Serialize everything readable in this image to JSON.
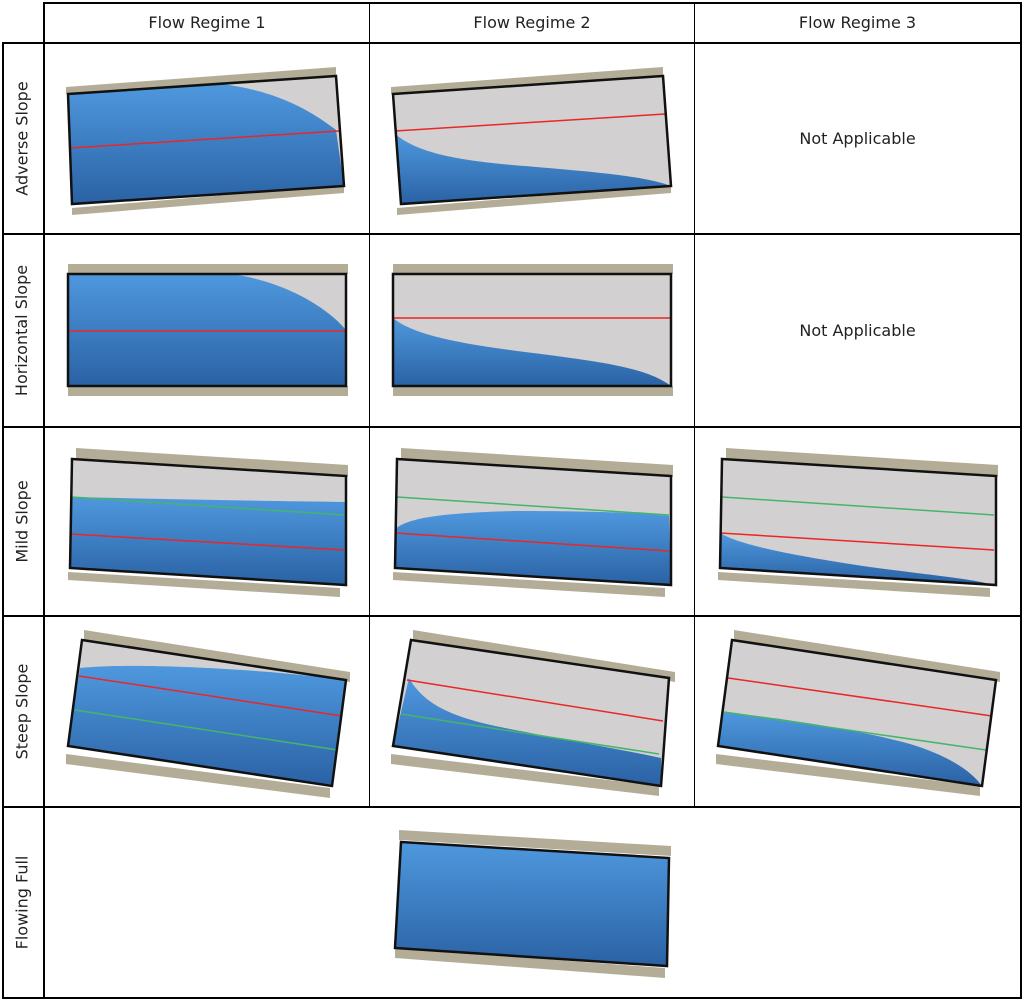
{
  "columns": [
    "Flow Regime 1",
    "Flow Regime 2",
    "Flow Regime 3"
  ],
  "rows": [
    "Adverse Slope",
    "Horizontal Slope",
    "Mild Slope",
    "Steep Slope",
    "Flowing Full"
  ],
  "not_applicable_text": "Not Applicable",
  "cells": [
    {
      "row": "Adverse Slope",
      "column": "Flow Regime 1",
      "content": "diagram",
      "profile": "drawdown from full",
      "lines": [
        "normal-depth-red"
      ]
    },
    {
      "row": "Adverse Slope",
      "column": "Flow Regime 2",
      "content": "diagram",
      "profile": "drawdown to outlet",
      "lines": [
        "critical-depth-red"
      ]
    },
    {
      "row": "Adverse Slope",
      "column": "Flow Regime 3",
      "content": "text"
    },
    {
      "row": "Horizontal Slope",
      "column": "Flow Regime 1",
      "content": "diagram",
      "profile": "drawdown from full",
      "lines": [
        "critical-depth-red"
      ]
    },
    {
      "row": "Horizontal Slope",
      "column": "Flow Regime 2",
      "content": "diagram",
      "profile": "drawdown to outlet",
      "lines": [
        "critical-depth-red"
      ]
    },
    {
      "row": "Horizontal Slope",
      "column": "Flow Regime 3",
      "content": "text"
    },
    {
      "row": "Mild Slope",
      "column": "Flow Regime 1",
      "content": "diagram",
      "profile": "backwater above normal",
      "lines": [
        "normal-depth-green",
        "critical-depth-red"
      ]
    },
    {
      "row": "Mild Slope",
      "column": "Flow Regime 2",
      "content": "diagram",
      "profile": "rising to normal",
      "lines": [
        "normal-depth-green",
        "critical-depth-red"
      ]
    },
    {
      "row": "Mild Slope",
      "column": "Flow Regime 3",
      "content": "diagram",
      "profile": "drawdown to outlet",
      "lines": [
        "normal-depth-green",
        "critical-depth-red"
      ]
    },
    {
      "row": "Steep Slope",
      "column": "Flow Regime 1",
      "content": "diagram",
      "profile": "above critical",
      "lines": [
        "critical-depth-red",
        "normal-depth-green"
      ]
    },
    {
      "row": "Steep Slope",
      "column": "Flow Regime 2",
      "content": "diagram",
      "profile": "drawdown to normal",
      "lines": [
        "critical-depth-red",
        "normal-depth-green"
      ]
    },
    {
      "row": "Steep Slope",
      "column": "Flow Regime 3",
      "content": "diagram",
      "profile": "below normal",
      "lines": [
        "critical-depth-red",
        "normal-depth-green"
      ]
    },
    {
      "row": "Flowing Full",
      "column": "Flow Regime 2",
      "content": "diagram",
      "profile": "full"
    }
  ],
  "colors": {
    "water": "#4a90d6",
    "water_dark": "#2a62a4",
    "pipe_interior": "#d2d0d0",
    "pipe_wall": "#111111",
    "ground": "#b3ad98",
    "critical_depth_line": "#ea2626",
    "normal_depth_line": "#44b56a",
    "grid": "#000000"
  }
}
